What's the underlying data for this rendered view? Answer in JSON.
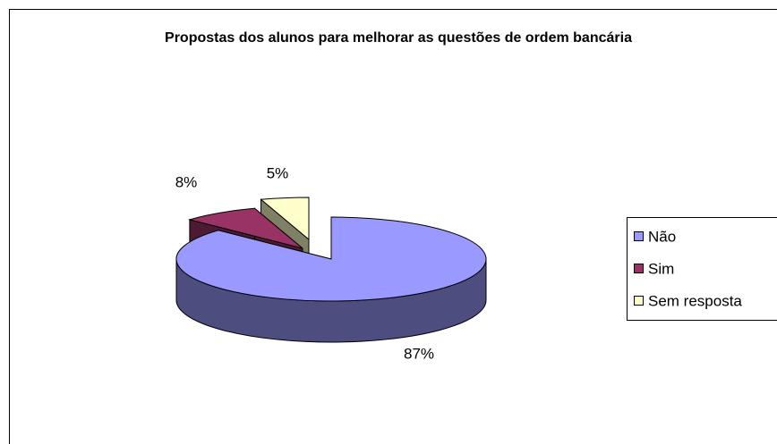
{
  "chart_data": {
    "type": "pie",
    "title": "Propostas dos alunos para melhorar as questões de ordem bancária",
    "categories": [
      "Não",
      "Sim",
      "Sem resposta"
    ],
    "values": [
      87,
      8,
      5
    ],
    "value_labels": [
      "87%",
      "8%",
      "5%"
    ],
    "colors": [
      "#9999ff",
      "#993366",
      "#ffffcc"
    ],
    "legend": "right"
  }
}
